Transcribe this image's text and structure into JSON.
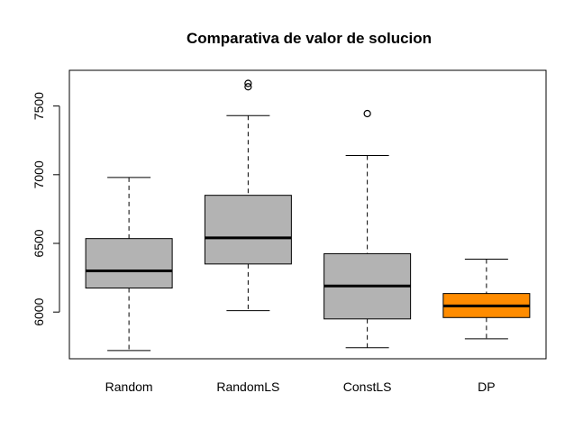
{
  "chart_data": {
    "type": "boxplot",
    "title": "Comparativa de valor de solucion",
    "xlabel": "",
    "ylabel": "",
    "categories": [
      "Random",
      "RandomLS",
      "ConstLS",
      "DP"
    ],
    "y_ticks": [
      "6000",
      "6500",
      "7000",
      "7500"
    ],
    "ylim": [
      5660,
      7760
    ],
    "grid": false,
    "boxes": [
      {
        "name": "Random",
        "whisker_low": 5720,
        "q1": 6175,
        "median": 6300,
        "q3": 6535,
        "whisker_high": 6980,
        "outliers": [],
        "color": "#b3b3b3"
      },
      {
        "name": "RandomLS",
        "whisker_low": 6010,
        "q1": 6350,
        "median": 6540,
        "q3": 6850,
        "whisker_high": 7430,
        "outliers": [
          7640,
          7665
        ],
        "color": "#b3b3b3"
      },
      {
        "name": "ConstLS",
        "whisker_low": 5740,
        "q1": 5950,
        "median": 6190,
        "q3": 6425,
        "whisker_high": 7140,
        "outliers": [
          7445
        ],
        "color": "#b3b3b3"
      },
      {
        "name": "DP",
        "whisker_low": 5805,
        "q1": 5960,
        "median": 6045,
        "q3": 6135,
        "whisker_high": 6385,
        "outliers": [],
        "color": "#ff8c00"
      }
    ]
  }
}
